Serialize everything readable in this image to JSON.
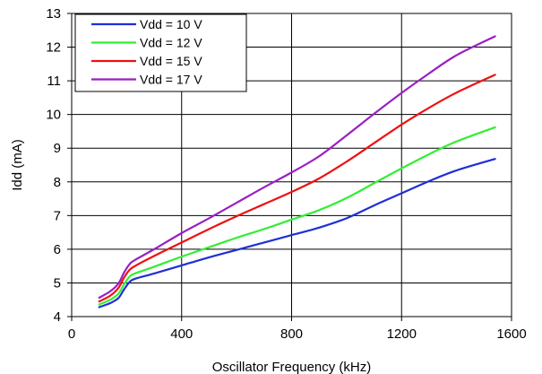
{
  "chart_data": {
    "type": "line",
    "title": "",
    "xlabel": "Oscillator Frequency (kHz)",
    "ylabel": "Idd (mA)",
    "xlim": [
      0,
      1600
    ],
    "ylim": [
      4,
      13
    ],
    "xticks": [
      0,
      400,
      800,
      1200,
      1600
    ],
    "yticks": [
      4,
      5,
      6,
      7,
      8,
      9,
      10,
      11,
      12,
      13
    ],
    "xtick_labels": [
      "0",
      "400",
      "800",
      "1200",
      "1600"
    ],
    "ytick_labels": [
      "4",
      "5",
      "6",
      "7",
      "8",
      "9",
      "10",
      "11",
      "12",
      "13"
    ],
    "grid": true,
    "legend_position": "top-left",
    "series": [
      {
        "name": "Vdd = 10 V",
        "color": "#1f2fd6",
        "x": [
          100,
          140,
          170,
          190,
          210,
          230,
          300,
          400,
          500,
          600,
          700,
          800,
          900,
          1000,
          1100,
          1200,
          1300,
          1400,
          1540
        ],
        "y": [
          4.28,
          4.4,
          4.55,
          4.8,
          5.02,
          5.12,
          5.28,
          5.52,
          5.76,
          5.98,
          6.2,
          6.42,
          6.64,
          6.92,
          7.3,
          7.66,
          8.02,
          8.34,
          8.68
        ]
      },
      {
        "name": "Vdd = 12 V",
        "color": "#33ee33",
        "x": [
          100,
          140,
          170,
          190,
          210,
          230,
          300,
          400,
          500,
          600,
          700,
          800,
          900,
          1000,
          1100,
          1200,
          1300,
          1400,
          1540
        ],
        "y": [
          4.36,
          4.5,
          4.68,
          4.95,
          5.18,
          5.28,
          5.48,
          5.78,
          6.06,
          6.34,
          6.6,
          6.88,
          7.16,
          7.52,
          7.96,
          8.4,
          8.82,
          9.2,
          9.62
        ]
      },
      {
        "name": "Vdd = 15 V",
        "color": "#ee1111",
        "x": [
          100,
          140,
          170,
          190,
          210,
          230,
          300,
          400,
          500,
          600,
          700,
          800,
          900,
          1000,
          1100,
          1200,
          1300,
          1400,
          1540
        ],
        "y": [
          4.45,
          4.62,
          4.85,
          5.15,
          5.38,
          5.5,
          5.8,
          6.2,
          6.6,
          6.98,
          7.34,
          7.7,
          8.1,
          8.6,
          9.15,
          9.7,
          10.2,
          10.65,
          11.18
        ]
      },
      {
        "name": "Vdd = 17 V",
        "color": "#9a1fc4",
        "x": [
          100,
          140,
          170,
          190,
          210,
          230,
          300,
          400,
          500,
          600,
          700,
          800,
          900,
          1000,
          1100,
          1200,
          1300,
          1400,
          1540
        ],
        "y": [
          4.56,
          4.75,
          4.98,
          5.3,
          5.55,
          5.68,
          6.0,
          6.48,
          6.92,
          7.38,
          7.84,
          8.28,
          8.76,
          9.38,
          10.02,
          10.64,
          11.22,
          11.76,
          12.32
        ]
      }
    ]
  }
}
